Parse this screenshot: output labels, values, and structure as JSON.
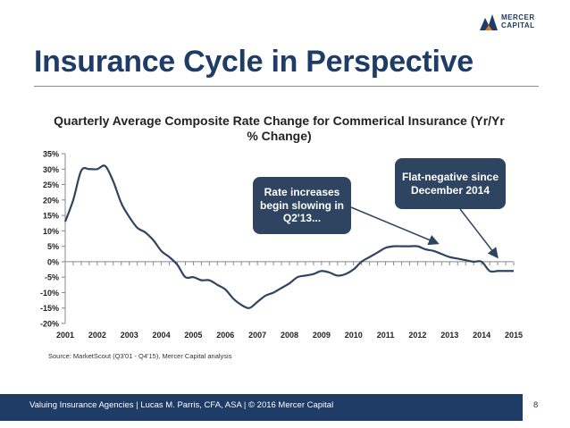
{
  "slide": {
    "title": "Insurance Cycle in Perspective",
    "logo_line1": "MERCER",
    "logo_line2": "CAPITAL",
    "source": "Source: MarketScout (Q3'01 - Q4'15), Mercer Capital analysis",
    "footer": "Valuing Insurance Agencies | Lucas M. Parris, CFA, ASA | © 2016 Mercer Capital",
    "page_number": "8"
  },
  "callouts": {
    "first": "Rate increases begin slowing in Q2'13...",
    "second": "Flat-negative since December 2014"
  },
  "colors": {
    "title": "#1f3c66",
    "line": "#2e4461",
    "callout_bg": "#2e4461",
    "footer_bg": "#1f3c66"
  },
  "chart_data": {
    "type": "line",
    "title": "Quarterly Average Composite Rate Change for Commerical Insurance  (Yr/Yr % Change)",
    "xlabel": "",
    "ylabel": "",
    "ylim": [
      -20,
      35
    ],
    "yticks": [
      "35%",
      "30%",
      "25%",
      "20%",
      "15%",
      "10%",
      "5%",
      "0%",
      "-5%",
      "-10%",
      "-15%",
      "-20%"
    ],
    "xticks": [
      "2001",
      "2002",
      "2003",
      "2004",
      "2005",
      "2006",
      "2007",
      "2008",
      "2009",
      "2010",
      "2011",
      "2012",
      "2013",
      "2014",
      "2015"
    ],
    "grid": false,
    "legend": "none",
    "series": [
      {
        "x": [
          2001,
          2001.25,
          2001.5,
          2001.75,
          2002,
          2002.25,
          2002.5,
          2002.75,
          2003,
          2003.25,
          2003.5,
          2003.75,
          2004,
          2004.25,
          2004.5,
          2004.75,
          2005,
          2005.25,
          2005.5,
          2005.75,
          2006,
          2006.25,
          2006.5,
          2006.75,
          2007,
          2007.25,
          2007.5,
          2007.75,
          2008,
          2008.25,
          2008.5,
          2008.75,
          2009,
          2009.25,
          2009.5,
          2009.75,
          2010,
          2010.25,
          2010.5,
          2010.75,
          2011,
          2011.25,
          2011.5,
          2011.75,
          2012,
          2012.25,
          2012.5,
          2012.75,
          2013,
          2013.25,
          2013.5,
          2013.75,
          2014,
          2014.25,
          2014.5,
          2014.75,
          2015
        ],
        "values": [
          13,
          20,
          29.5,
          30,
          30,
          31,
          26,
          19,
          14.5,
          11,
          9.5,
          7,
          3.5,
          1.5,
          -1,
          -5,
          -5,
          -6,
          -6,
          -7.5,
          -9,
          -12,
          -14,
          -15,
          -13,
          -11,
          -10,
          -8.5,
          -7,
          -5,
          -4.5,
          -4,
          -3,
          -3.5,
          -4.5,
          -4,
          -2.5,
          0,
          1.5,
          3,
          4.5,
          5,
          5,
          5,
          5,
          4,
          3.5,
          2.5,
          1.5,
          1,
          0.5,
          0,
          0,
          -3,
          -3,
          -3,
          -3
        ]
      }
    ]
  }
}
